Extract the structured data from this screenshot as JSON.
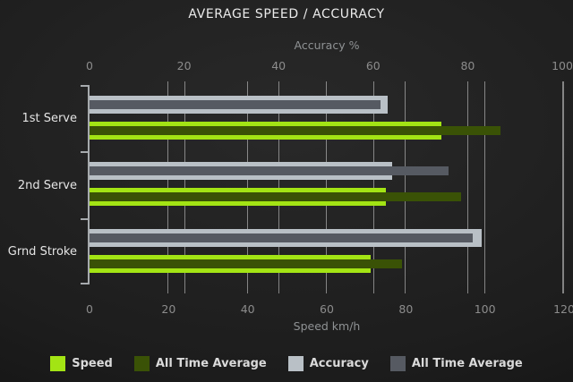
{
  "chart_data": {
    "type": "bar",
    "orientation": "horizontal",
    "title": "AVERAGE SPEED / ACCURACY",
    "categories": [
      "1st Serve",
      "2nd Serve",
      "Grnd Stroke"
    ],
    "axes": {
      "top": {
        "label": "Accuracy %",
        "ticks": [
          0,
          20,
          40,
          60,
          80,
          100
        ],
        "min": 0,
        "max": 100
      },
      "bottom": {
        "label": "Speed km/h",
        "ticks": [
          0,
          20,
          40,
          60,
          80,
          100,
          120
        ],
        "min": 0,
        "max": 120
      }
    },
    "series": [
      {
        "name": "Speed",
        "axis": "bottom",
        "role": "main",
        "color": "#a3e414",
        "values": [
          89,
          75,
          71
        ]
      },
      {
        "name": "All Time Average",
        "axis": "bottom",
        "role": "overlay",
        "color": "#3a5206",
        "values": [
          104,
          94,
          79
        ]
      },
      {
        "name": "Accuracy",
        "axis": "top",
        "role": "main",
        "color": "#b9c0c6",
        "values": [
          63,
          64,
          83
        ]
      },
      {
        "name": "All Time Average",
        "axis": "top",
        "role": "overlay",
        "color": "#565a62",
        "values": [
          61.5,
          76,
          81
        ]
      }
    ],
    "legend_position": "bottom",
    "grid": true
  },
  "colors": {
    "background_center": "#292929",
    "background_edge": "#0e0e0e",
    "gridline": "#919191",
    "axis": "#a6aaad",
    "title_text": "#ebebeb",
    "tick_text": "#8c8c8c",
    "category_text": "#e5e5e5",
    "legend_text": "#dadada"
  }
}
